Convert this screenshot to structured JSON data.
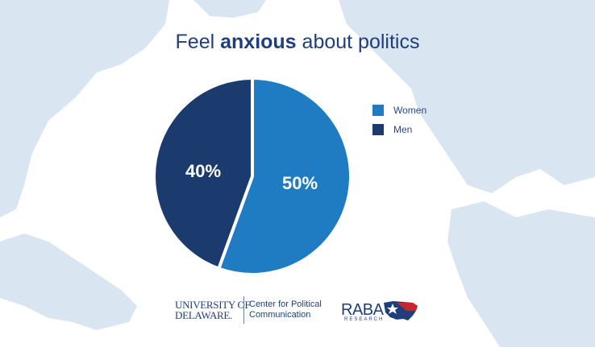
{
  "title": {
    "prefix": "Feel ",
    "bold": "anxious",
    "suffix": " about politics"
  },
  "chart_data": {
    "type": "pie",
    "title": "Feel anxious about politics",
    "series": [
      {
        "name": "Women",
        "value": 50,
        "label": "50%",
        "color": "#1f7cc2"
      },
      {
        "name": "Men",
        "value": 40,
        "label": "40%",
        "color": "#1b3a6e"
      }
    ],
    "legend_position": "right"
  },
  "logos": {
    "ud_line1": "UNIVERSITY OF",
    "ud_line2": "DELAWARE.",
    "cpc_line1": "Center for Political",
    "cpc_line2": "Communication",
    "raba": "RABA",
    "raba_sub": "RESEARCH"
  },
  "colors": {
    "background": "#ffffff",
    "map_land": "#d8e6f3",
    "title": "#1f3f7a"
  }
}
